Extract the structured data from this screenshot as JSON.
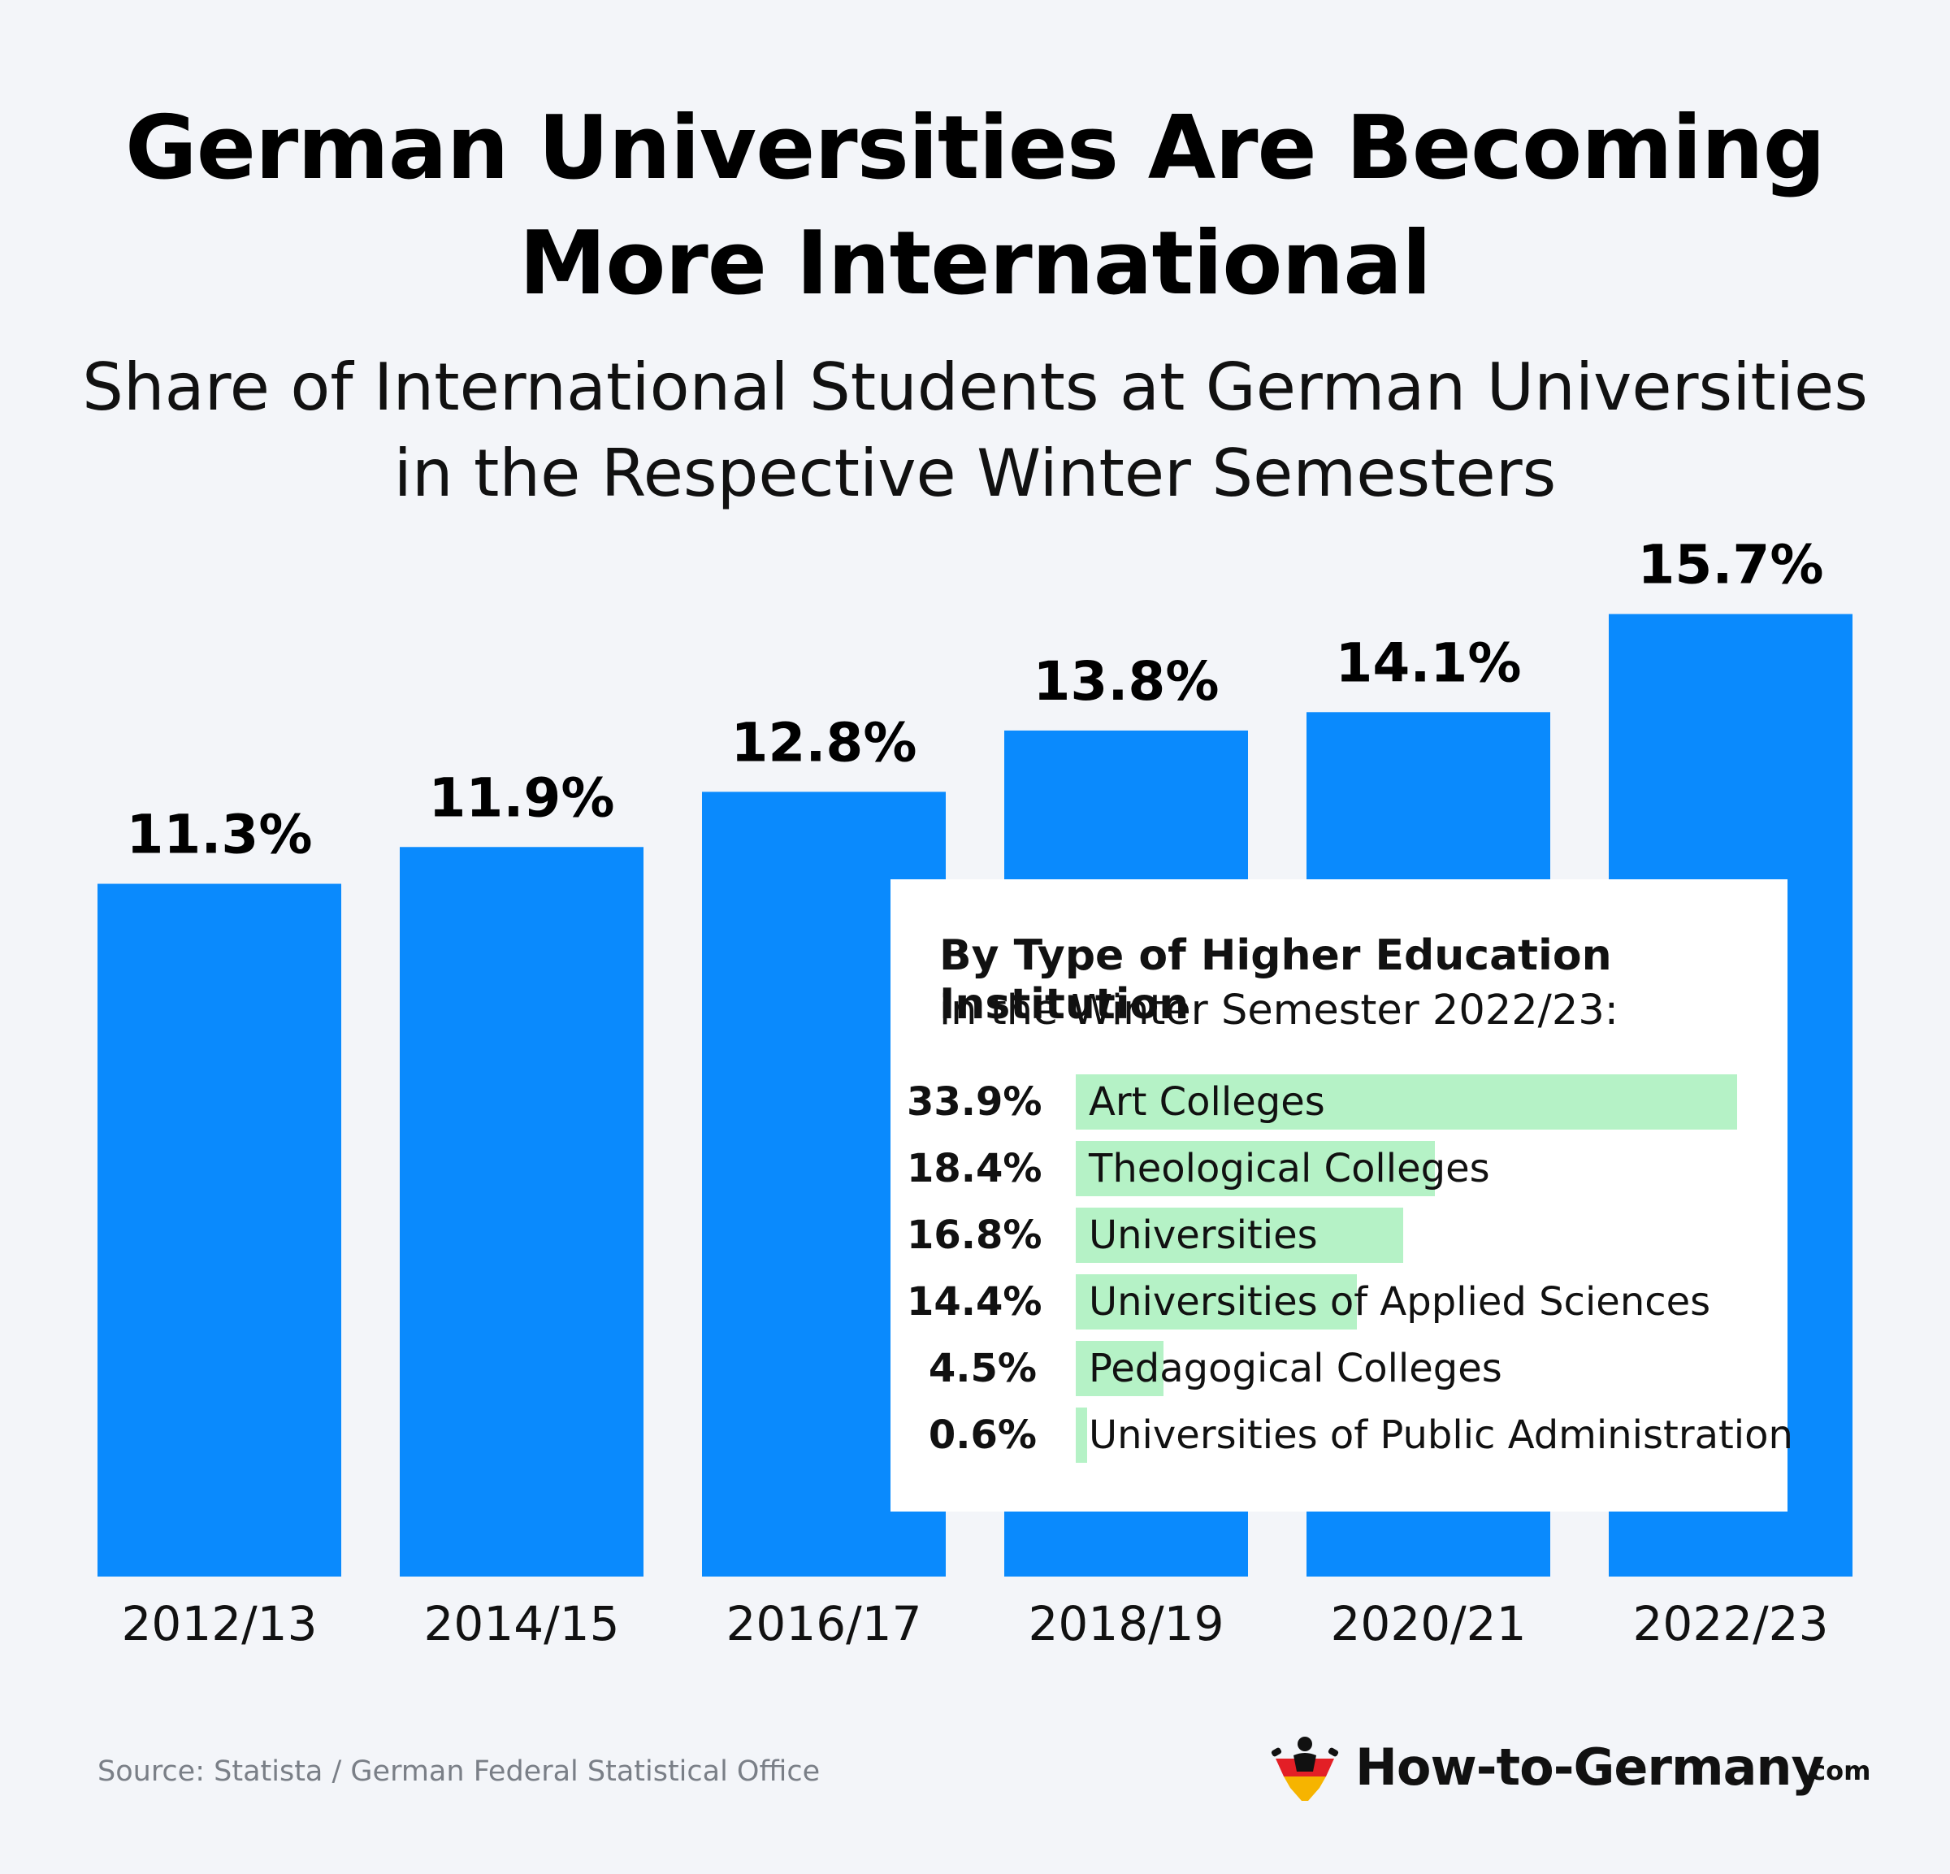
{
  "title_lines": [
    "German Universities Are Becoming",
    "More International"
  ],
  "subtitle_lines": [
    "Share of International Students at German Universities",
    "in the Respective Winter Semesters"
  ],
  "chart_data": {
    "type": "bar",
    "categories": [
      "2012/13",
      "2014/15",
      "2016/17",
      "2018/19",
      "2020/21",
      "2022/23"
    ],
    "values": [
      11.3,
      11.9,
      12.8,
      13.8,
      14.1,
      15.7
    ],
    "value_labels": [
      "11.3%",
      "11.9%",
      "12.8%",
      "13.8%",
      "14.1%",
      "15.7%"
    ],
    "unit": "%",
    "bar_color": "#0a8afd",
    "grid": false
  },
  "inset": {
    "title": "By Type of Higher Education Institution",
    "subtitle": "in the Winter Semester 2022/23:",
    "chart_data": {
      "type": "bar",
      "orientation": "horizontal",
      "categories": [
        "Art Colleges",
        "Theological Colleges",
        "Universities",
        "Universities of Applied Sciences",
        "Pedagogical Colleges",
        "Universities of Public Administration"
      ],
      "values": [
        33.9,
        18.4,
        16.8,
        14.4,
        4.5,
        0.6
      ],
      "value_labels": [
        "33.9%",
        "18.4%",
        "16.8%",
        "14.4%",
        "4.5%",
        "0.6%"
      ],
      "bar_color": "#b5f2c6"
    }
  },
  "source": "Source: Statista / German Federal Statistical Office",
  "brand": {
    "name": "How-to-Germany",
    "tld": ".com"
  }
}
